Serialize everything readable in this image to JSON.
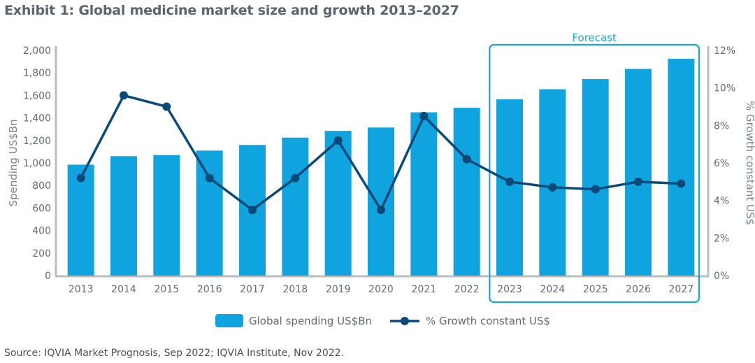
{
  "title": "Exhibit 1: Global medicine market size and growth 2013–2027",
  "source": "Source: IQVIA Market Prognosis, Sep 2022; IQVIA Institute, Nov 2022.",
  "forecast_label": "Forecast",
  "colors": {
    "bar": "#0fa4df",
    "line": "#0b4a78",
    "forecast_box": "#1aa3dc",
    "axis": "#b8bdc2"
  },
  "chart_data": {
    "type": "bar",
    "categories": [
      "2013",
      "2014",
      "2015",
      "2016",
      "2017",
      "2018",
      "2019",
      "2020",
      "2021",
      "2022",
      "2023",
      "2024",
      "2025",
      "2026",
      "2027"
    ],
    "series": [
      {
        "name": "Global spending US$Bn",
        "type": "bar",
        "axis": "left",
        "values": [
          985,
          1060,
          1070,
          1110,
          1160,
          1225,
          1285,
          1315,
          1450,
          1490,
          1565,
          1655,
          1745,
          1835,
          1925
        ]
      },
      {
        "name": "% Growth constant US$",
        "type": "line",
        "axis": "right",
        "values": [
          5.2,
          9.6,
          9.0,
          5.2,
          3.5,
          5.2,
          7.2,
          3.5,
          8.5,
          6.2,
          5.0,
          4.7,
          4.6,
          5.0,
          4.9
        ]
      }
    ],
    "ylabel": "Spending US$Bn",
    "ylabel_right": "% Growth constant US$",
    "ylim": [
      0,
      2000
    ],
    "ylim_right": [
      0,
      12
    ],
    "yticks": [
      "0",
      "200",
      "400",
      "600",
      "800",
      "1,000",
      "1,200",
      "1,400",
      "1,600",
      "1,800",
      "2,000"
    ],
    "yticks_right": [
      "0%",
      "2%",
      "4%",
      "6%",
      "8%",
      "10%",
      "12%"
    ],
    "forecast_range": [
      "2023",
      "2027"
    ],
    "legend_position": "bottom-center",
    "grid": false
  }
}
